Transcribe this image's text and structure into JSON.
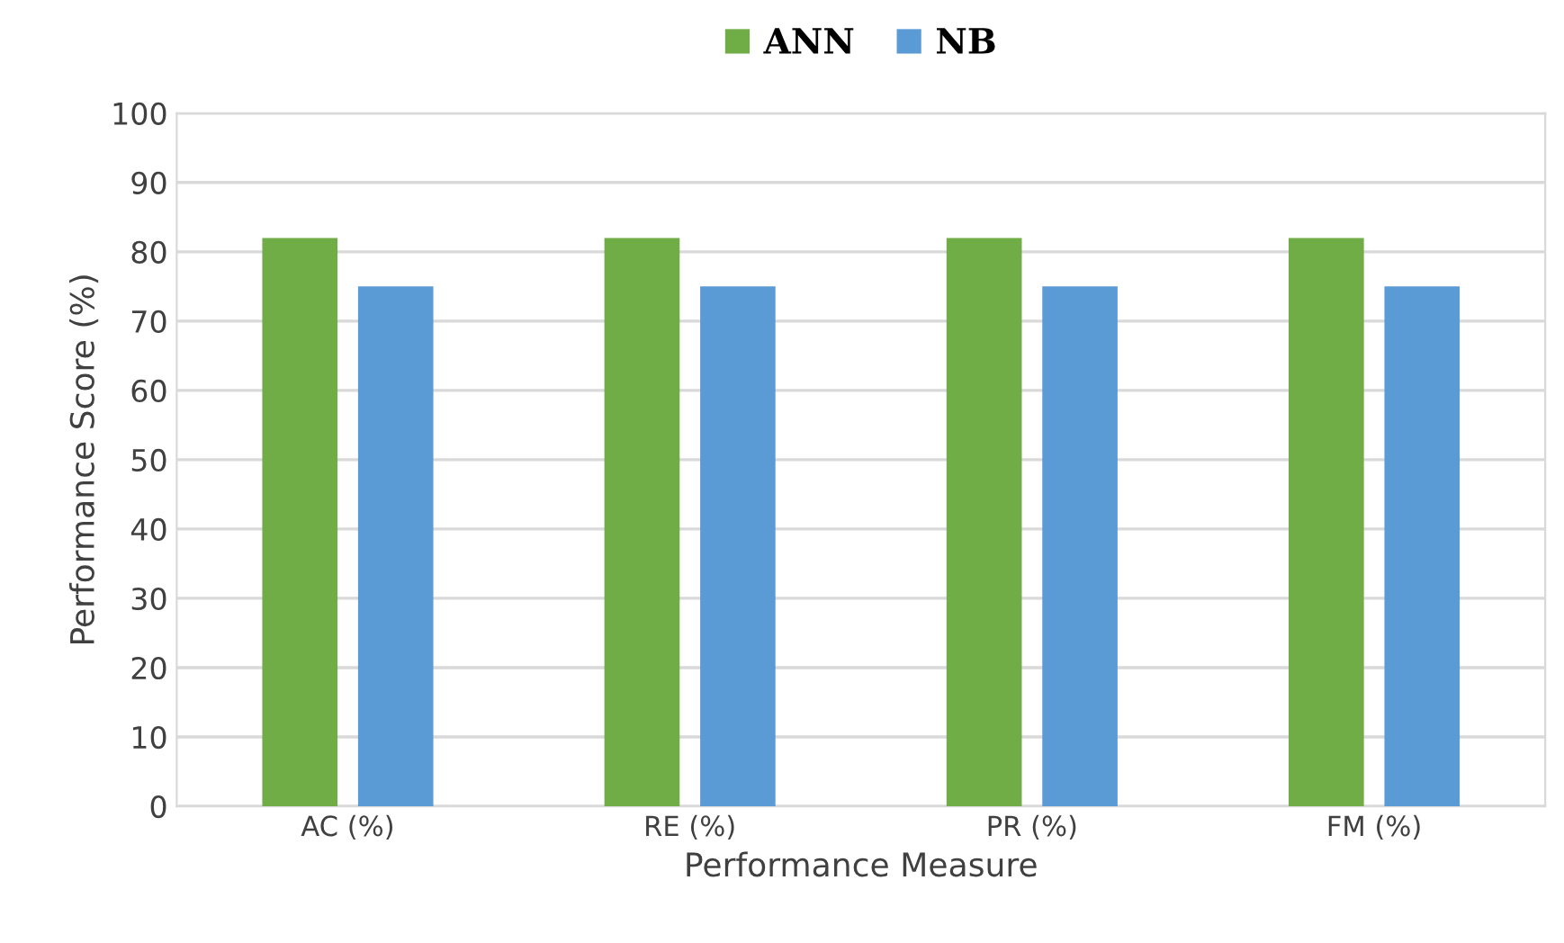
{
  "chart_data": {
    "type": "bar",
    "xlabel": "Performance Measure",
    "ylabel": "Performance Score (%)",
    "categories": [
      "AC (%)",
      "RE (%)",
      "PR (%)",
      "FM (%)"
    ],
    "series": [
      {
        "name": "ANN",
        "color": "#70ad47",
        "values": [
          82,
          82,
          82,
          82
        ]
      },
      {
        "name": "NB",
        "color": "#5b9bd5",
        "values": [
          75,
          75,
          75,
          75
        ]
      }
    ],
    "ylim": [
      0,
      100
    ],
    "yticks": [
      0,
      10,
      20,
      30,
      40,
      50,
      60,
      70,
      80,
      90,
      100
    ],
    "grid": "y",
    "legend": "top"
  }
}
